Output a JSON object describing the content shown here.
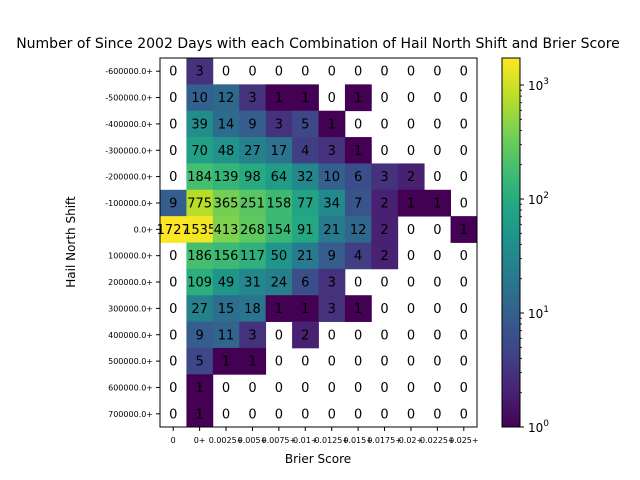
{
  "chart_data": {
    "type": "heatmap",
    "title": "Number of Since 2002 Days with each Combination of Hail North Shift and Brier Score",
    "xlabel": "Brier Score",
    "ylabel": "Hail North Shift",
    "x_categories": [
      "0",
      "0+",
      "0.0025+",
      "0.005+",
      "0.0075+",
      "0.01+",
      "0.0125+",
      "0.015+",
      "0.0175+",
      "0.02+",
      "0.0225+",
      "0.025+"
    ],
    "y_categories": [
      "-600000.0+",
      "-500000.0+",
      "-400000.0+",
      "-300000.0+",
      "-200000.0+",
      "-100000.0+",
      "0.0+",
      "100000.0+",
      "200000.0+",
      "300000.0+",
      "400000.0+",
      "500000.0+",
      "600000.0+",
      "700000.0+"
    ],
    "values": [
      [
        0,
        3,
        0,
        0,
        0,
        0,
        0,
        0,
        0,
        0,
        0,
        0
      ],
      [
        0,
        10,
        12,
        3,
        1,
        1,
        0,
        1,
        0,
        0,
        0,
        0
      ],
      [
        0,
        39,
        14,
        9,
        3,
        5,
        1,
        0,
        0,
        0,
        0,
        0
      ],
      [
        0,
        70,
        48,
        27,
        17,
        4,
        3,
        1,
        0,
        0,
        0,
        0
      ],
      [
        0,
        184,
        139,
        98,
        64,
        32,
        10,
        6,
        3,
        2,
        0,
        0
      ],
      [
        9,
        775,
        365,
        251,
        158,
        77,
        34,
        7,
        2,
        1,
        1,
        0
      ],
      [
        1727,
        1535,
        413,
        268,
        154,
        91,
        21,
        12,
        2,
        0,
        0,
        1
      ],
      [
        0,
        186,
        156,
        117,
        50,
        21,
        9,
        4,
        2,
        0,
        0,
        0
      ],
      [
        0,
        109,
        49,
        31,
        24,
        6,
        3,
        0,
        0,
        0,
        0,
        0
      ],
      [
        0,
        27,
        15,
        18,
        1,
        1,
        3,
        1,
        0,
        0,
        0,
        0
      ],
      [
        0,
        9,
        11,
        3,
        0,
        2,
        0,
        0,
        0,
        0,
        0,
        0
      ],
      [
        0,
        5,
        1,
        1,
        0,
        0,
        0,
        0,
        0,
        0,
        0,
        0
      ],
      [
        0,
        1,
        0,
        0,
        0,
        0,
        0,
        0,
        0,
        0,
        0,
        0
      ],
      [
        0,
        1,
        0,
        0,
        0,
        0,
        0,
        0,
        0,
        0,
        0,
        0
      ]
    ],
    "color_scale": "log",
    "colormap": "viridis",
    "color_range": [
      1,
      1727
    ],
    "colorbar_ticks": [
      {
        "value": 1,
        "base": "10",
        "exp": "0"
      },
      {
        "value": 10,
        "base": "10",
        "exp": "1"
      },
      {
        "value": 100,
        "base": "10",
        "exp": "2"
      },
      {
        "value": 1000,
        "base": "10",
        "exp": "3"
      }
    ],
    "zero_color": "#ffffff",
    "grid": false
  }
}
